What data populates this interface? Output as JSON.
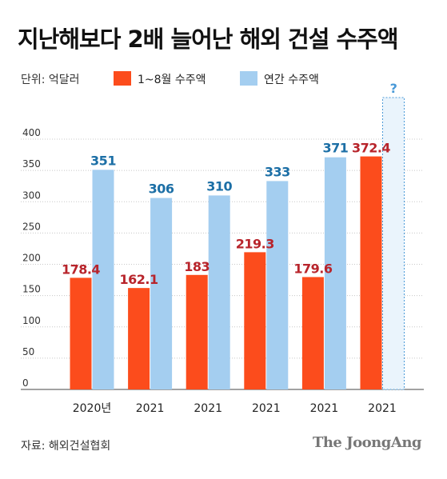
{
  "title": "지난해보다 2배 늘어난 해외 건설 수주액",
  "unit_label": "단위: 억달러",
  "source": "자료: 해외건설협회",
  "brand": "The JoongAng",
  "colors": {
    "series1": "#fc4c1c",
    "series2": "#a4cef0",
    "label1": "#b8242b",
    "label2": "#1c6fa6",
    "pending": "#4a9ad8"
  },
  "chart_data": {
    "type": "bar",
    "categories": [
      "2020년",
      "2021",
      "2021",
      "2021",
      "2021",
      "2021"
    ],
    "series": [
      {
        "name": "1~8월 수주액",
        "values": [
          178.4,
          162.1,
          183,
          219.3,
          179.6,
          372.4
        ],
        "labels": [
          "178.4",
          "162.1",
          "183",
          "219.3",
          "179.6",
          "372.4"
        ]
      },
      {
        "name": "연간 수주액",
        "values": [
          351,
          306,
          310,
          333,
          371,
          null
        ],
        "labels": [
          "351",
          "306",
          "310",
          "333",
          "371",
          "?"
        ]
      }
    ],
    "yticks": [
      0,
      50,
      100,
      150,
      200,
      250,
      300,
      350,
      400
    ],
    "ylim": [
      0,
      400
    ],
    "grid": true,
    "legend": "top-left"
  }
}
